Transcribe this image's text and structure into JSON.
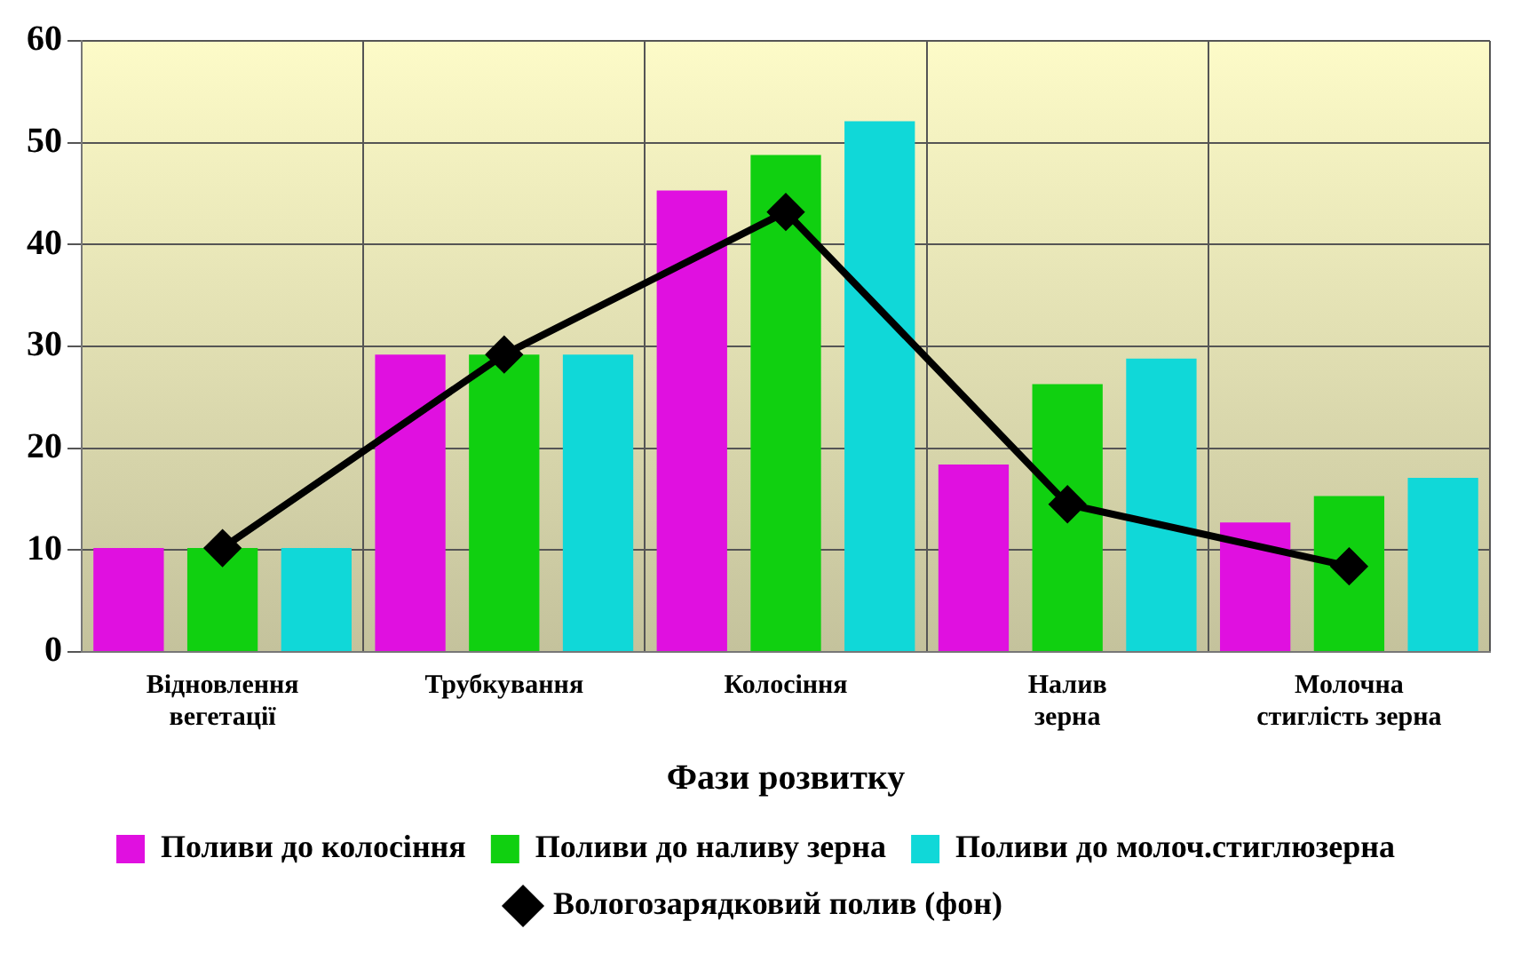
{
  "chart_data": {
    "type": "bar",
    "xlabel": "Фази розвитку",
    "categories": [
      "Відновлення вегетації",
      "Трубкування",
      "Колосіння",
      "Налив зерна",
      "Молочна стиглість зерна"
    ],
    "series": [
      {
        "name": "Поливи до колосіння",
        "color": "#e010e0",
        "values": [
          10.2,
          29.2,
          45.3,
          18.4,
          12.7
        ]
      },
      {
        "name": "Поливи до наливу зерна",
        "color": "#10d010",
        "values": [
          10.2,
          29.2,
          48.8,
          26.3,
          15.3
        ]
      },
      {
        "name": "Поливи до молоч.стиглюзерна",
        "color": "#10d8d8",
        "values": [
          10.2,
          29.2,
          52.1,
          28.8,
          17.1
        ]
      },
      {
        "name": "Вологозарядковий полив (фон)",
        "type": "line",
        "color": "#000000",
        "values": [
          10.2,
          29.2,
          43.2,
          14.5,
          8.4
        ]
      }
    ],
    "ylim": [
      0,
      60
    ],
    "yticks": [
      0,
      10,
      20,
      30,
      40,
      50,
      60
    ],
    "grid": true,
    "legend": "bottom",
    "marker": "diamond",
    "line_style": "solid"
  }
}
